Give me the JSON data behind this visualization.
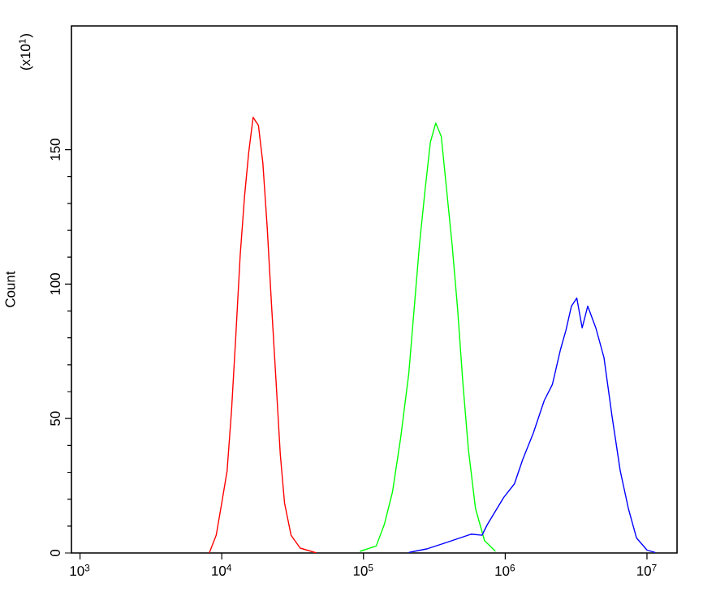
{
  "chart_data": {
    "type": "line",
    "ylabel": "Count",
    "annotations": [
      "(x10$^{1}$)"
    ],
    "log": "x",
    "xlim": [
      870,
      16300000
    ],
    "ylim": [
      0,
      196
    ],
    "xticks": [
      {
        "value": 1000,
        "label": "10$^{3}$"
      },
      {
        "value": 10000,
        "label": "10$^{4}$"
      },
      {
        "value": 100000,
        "label": "10$^{5}$"
      },
      {
        "value": 1000000,
        "label": "10$^{6}$"
      },
      {
        "value": 10000000,
        "label": "10$^{7}$"
      }
    ],
    "yticks": [
      0,
      50,
      100,
      150
    ],
    "series": [
      {
        "color": "#ff0000",
        "x": [
          8166,
          9140,
          10000,
          10910,
          11720,
          12560,
          13490,
          14490,
          15500,
          16640,
          18150,
          19500,
          20940,
          22430,
          24090,
          25880,
          27730,
          30830,
          35810,
          46670
        ],
        "values": [
          0,
          6.6,
          18.6,
          30.6,
          52.9,
          80.5,
          110.6,
          132.8,
          149,
          162,
          159,
          145,
          120.8,
          92.6,
          64.9,
          36.7,
          18.6,
          6.6,
          1.8,
          0
        ]
      },
      {
        "color": "#00ff00",
        "x": [
          94410,
          123000,
          140300,
          160200,
          182800,
          208700,
          227700,
          248400,
          271700,
          296500,
          323400,
          353800,
          386400,
          421700,
          461300,
          503500,
          549500,
          616600,
          714500,
          853100
        ],
        "values": [
          0.6,
          2.6,
          10.6,
          22.7,
          42.7,
          66.7,
          90.8,
          114.8,
          134.8,
          152.8,
          159.9,
          154.9,
          134.8,
          114.8,
          90.8,
          62.7,
          38.6,
          16.6,
          4.6,
          0.6
        ]
      },
      {
        "color": "#0000ff",
        "x": [
          208700,
          283800,
          369300,
          480800,
          574000,
          685500,
          748200,
          974800,
          1161000,
          1327000,
          1581000,
          1885000,
          2152000,
          2455000,
          2680000,
          2931000,
          3199000,
          3491000,
          3820000,
          4357000,
          4972000,
          5675000,
          6477000,
          7389000,
          8433000,
          10050000,
          11450000
        ],
        "values": [
          0.2,
          1.6,
          3.6,
          5.6,
          7,
          6.6,
          10.6,
          20.6,
          25.7,
          34.7,
          44.7,
          56.7,
          62.7,
          75.7,
          82.8,
          91.8,
          94.8,
          83.7,
          91.8,
          83.7,
          72.7,
          50.7,
          30.6,
          16.6,
          5.6,
          1,
          0.2
        ]
      }
    ]
  }
}
